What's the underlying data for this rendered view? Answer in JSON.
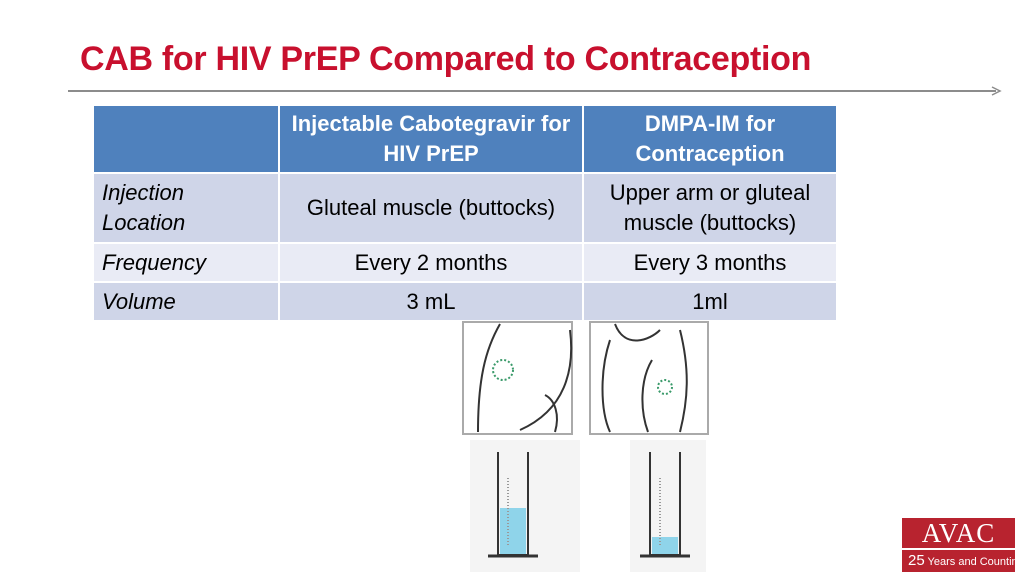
{
  "title": "CAB for HIV PrEP Compared to Contraception",
  "table": {
    "header": [
      "Injectable Cabotegravir for HIV PrEP",
      "DMPA-IM for Contraception"
    ],
    "rows": [
      [
        "Injection Location",
        "Gluteal muscle (buttocks)",
        "Upper arm or gluteal muscle (buttocks)"
      ],
      [
        "Frequency",
        "Every 2 months",
        "Every 3 months"
      ],
      [
        "Volume",
        "3 mL",
        "1ml"
      ]
    ]
  },
  "logo": {
    "name": "AVAC",
    "number": "25",
    "tagline": "Years and Counting"
  }
}
